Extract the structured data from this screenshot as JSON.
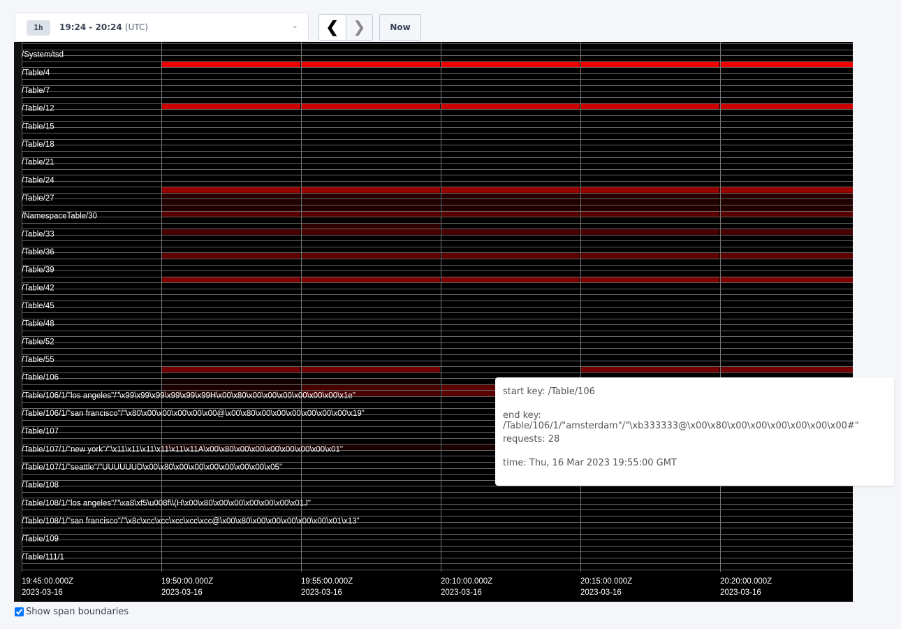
{
  "time_range": {
    "badge": "1h",
    "range": "19:24 - 20:24",
    "tz": "(UTC)"
  },
  "nav": {
    "prev_icon": "chevron-left-icon",
    "next_icon": "chevron-right-icon",
    "now_label": "Now"
  },
  "chart_data": {
    "type": "heatmap",
    "key_labels": [
      "/System/tsd",
      "/Table/4",
      "/Table/7",
      "/Table/12",
      "/Table/15",
      "/Table/18",
      "/Table/21",
      "/Table/24",
      "/Table/27",
      "/NamespaceTable/30",
      "/Table/33",
      "/Table/36",
      "/Table/39",
      "/Table/42",
      "/Table/45",
      "/Table/48",
      "/Table/52",
      "/Table/55",
      "/Table/106",
      "/Table/106/1/\"los angeles\"/\"\\x99\\x99\\x99\\x99\\x99\\x99H\\x00\\x80\\x00\\x00\\x00\\x00\\x00\\x00\\x1e\"",
      "/Table/106/1/\"san francisco\"/\"\\x80\\x00\\x00\\x00\\x00\\x00@\\x00\\x80\\x00\\x00\\x00\\x00\\x00\\x00\\x19\"",
      "/Table/107",
      "/Table/107/1/\"new york\"/\"\\x11\\x11\\x11\\x11\\x11\\x11A\\x00\\x80\\x00\\x00\\x00\\x00\\x00\\x00\\x01\"",
      "/Table/107/1/\"seattle\"/\"UUUUUUD\\x00\\x80\\x00\\x00\\x00\\x00\\x00\\x00\\x05\"",
      "/Table/108",
      "/Table/108/1/\"los angeles\"/\"\\xa8\\xf5\\u008f\\\\(H\\x00\\x80\\x00\\x00\\x00\\x00\\x00\\x01J\"",
      "/Table/108/1/\"san francisco\"/\"\\x8c\\xcc\\xcc\\xcc\\xcc\\xcc@\\x00\\x80\\x00\\x00\\x00\\x00\\x00\\x01\\x13\"",
      "/Table/109",
      "/Table/111/1"
    ],
    "time_ticks": [
      {
        "time": "19:45:00.000Z",
        "date": "2023-03-16"
      },
      {
        "time": "19:50:00.000Z",
        "date": "2023-03-16"
      },
      {
        "time": "19:55:00.000Z",
        "date": "2023-03-16"
      },
      {
        "time": "20:10:00.000Z",
        "date": "2023-03-16"
      },
      {
        "time": "20:15:00.000Z",
        "date": "2023-03-16"
      },
      {
        "time": "20:20:00.000Z",
        "date": "2023-03-16"
      }
    ],
    "span_count": 88,
    "color_scale": {
      "low": "#000000",
      "high": "#ff0000"
    },
    "cells": [
      {
        "span": 3,
        "cols": [
          1,
          2,
          3,
          4,
          5
        ],
        "intensity": 0.95
      },
      {
        "span": 10,
        "cols": [
          1,
          2,
          3,
          4,
          5
        ],
        "intensity": 0.8
      },
      {
        "span": 24,
        "cols": [
          1,
          2,
          3,
          4,
          5
        ],
        "intensity": 0.6
      },
      {
        "span": 25,
        "cols": [
          1,
          2,
          3,
          4,
          5
        ],
        "intensity": 0.16
      },
      {
        "span": 26,
        "cols": [
          1,
          2,
          3,
          4,
          5
        ],
        "intensity": 0.13
      },
      {
        "span": 27,
        "cols": [
          1,
          2,
          3,
          4,
          5
        ],
        "intensity": 0.13
      },
      {
        "span": 28,
        "cols": [
          1,
          2,
          3,
          4,
          5
        ],
        "intensity": 0.35
      },
      {
        "span": 30,
        "cols": [
          2
        ],
        "intensity": 0.2
      },
      {
        "span": 31,
        "cols": [
          1,
          2,
          3,
          4,
          5
        ],
        "intensity": 0.28
      },
      {
        "span": 35,
        "cols": [
          1,
          2,
          3,
          4,
          5
        ],
        "intensity": 0.36
      },
      {
        "span": 39,
        "cols": [
          1,
          2,
          3,
          4,
          5
        ],
        "intensity": 0.5
      },
      {
        "span": 54,
        "cols": [
          1,
          2,
          4,
          5
        ],
        "intensity": 0.45
      },
      {
        "span": 56,
        "cols": [
          1,
          2
        ],
        "intensity": 0.07
      },
      {
        "span": 57,
        "cols": [
          1
        ],
        "intensity": 0.1
      },
      {
        "span": 58,
        "cols": [
          1
        ],
        "intensity": 0.1
      },
      {
        "span": 57,
        "cols": [
          2
        ],
        "intensity": 0.28
      },
      {
        "span": 58,
        "cols": [
          2
        ],
        "intensity": 0.28
      },
      {
        "span": 57,
        "cols": [
          3
        ],
        "intensity": 0.36
      },
      {
        "span": 58,
        "cols": [
          3
        ],
        "intensity": 0.36
      },
      {
        "span": 67,
        "cols": [
          1,
          2,
          3
        ],
        "intensity": 0.1
      }
    ]
  },
  "tooltip": {
    "start_key": "start key: /Table/106",
    "end_key": "end key: /Table/106/1/\"amsterdam\"/\"\\xb333333@\\x00\\x80\\x00\\x00\\x00\\x00\\x00\\x00#\"",
    "requests": "requests: 28",
    "time": "time: Thu, 16 Mar 2023 19:55:00 GMT"
  },
  "show_span_boundaries": {
    "label": "Show span boundaries",
    "checked": true
  }
}
